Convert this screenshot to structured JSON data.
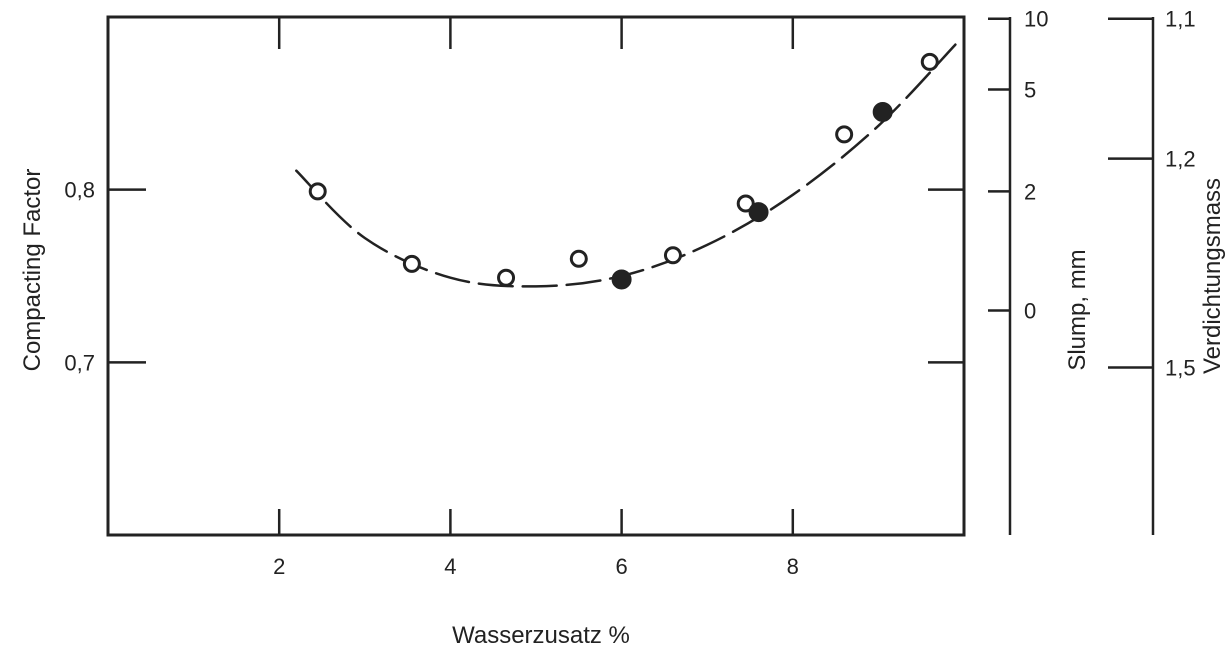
{
  "chart_data": {
    "type": "scatter",
    "xlabel": "Wasserzusatz %",
    "ylabel": "Compacting Factor",
    "xlim": [
      0,
      10
    ],
    "ylim": [
      0.6,
      0.9
    ],
    "x_ticks": [
      2,
      4,
      6,
      8
    ],
    "x_tick_labels": [
      "2",
      "4",
      "6",
      "8"
    ],
    "y_ticks": [
      0.7,
      0.8
    ],
    "y_tick_labels": [
      "0,7",
      "0,8"
    ],
    "grid": false,
    "series": [
      {
        "marker": "open-circle",
        "points": [
          {
            "x": 2.45,
            "y": 0.799
          },
          {
            "x": 3.55,
            "y": 0.757
          },
          {
            "x": 4.65,
            "y": 0.749
          },
          {
            "x": 5.5,
            "y": 0.76
          },
          {
            "x": 6.6,
            "y": 0.762
          },
          {
            "x": 7.45,
            "y": 0.792
          },
          {
            "x": 8.6,
            "y": 0.832
          },
          {
            "x": 9.6,
            "y": 0.874
          }
        ]
      },
      {
        "marker": "filled-circle",
        "points": [
          {
            "x": 6.0,
            "y": 0.748
          },
          {
            "x": 7.6,
            "y": 0.787
          },
          {
            "x": 9.05,
            "y": 0.845
          }
        ]
      }
    ],
    "fit_curve": {
      "style": "dashed",
      "points": [
        {
          "x": 2.2,
          "y": 0.811
        },
        {
          "x": 3.0,
          "y": 0.772
        },
        {
          "x": 4.0,
          "y": 0.749
        },
        {
          "x": 5.0,
          "y": 0.744
        },
        {
          "x": 6.0,
          "y": 0.75
        },
        {
          "x": 7.0,
          "y": 0.768
        },
        {
          "x": 8.0,
          "y": 0.797
        },
        {
          "x": 9.0,
          "y": 0.837
        },
        {
          "x": 9.9,
          "y": 0.884
        }
      ]
    },
    "secondary_axes": [
      {
        "label": "Slump, mm",
        "ticks": [
          {
            "label": "10",
            "compacting_factor": 0.899
          },
          {
            "label": "5",
            "compacting_factor": 0.858
          },
          {
            "label": "2",
            "compacting_factor": 0.799
          },
          {
            "label": "0",
            "compacting_factor": 0.73
          }
        ]
      },
      {
        "label": "Verdichtungsmass",
        "ticks": [
          {
            "label": "1,1",
            "compacting_factor": 0.899
          },
          {
            "label": "1,2",
            "compacting_factor": 0.818
          },
          {
            "label": "1,5",
            "compacting_factor": 0.697
          }
        ]
      }
    ],
    "colors": {
      "ink": "#222222",
      "background": "#ffffff"
    }
  }
}
